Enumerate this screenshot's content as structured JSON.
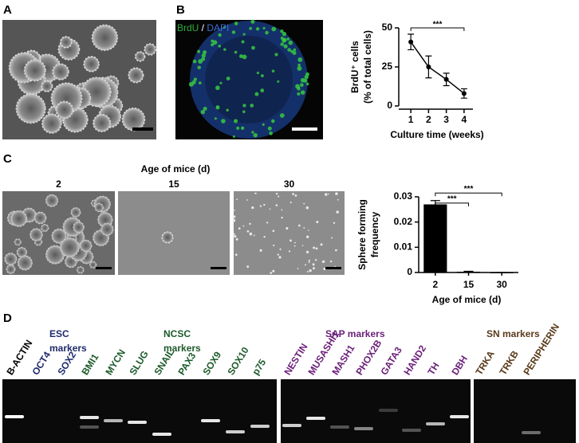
{
  "panels": {
    "a": "A",
    "b": "B",
    "c": "C",
    "d": "D"
  },
  "image_b_label": {
    "brdu": "BrdU",
    "sep": " / ",
    "dapi": "DAPI"
  },
  "images_c": {
    "title": "Age of mice (d)",
    "labels": [
      "2",
      "15",
      "30"
    ]
  },
  "chart_data": [
    {
      "type": "line",
      "x": [
        1,
        2,
        3,
        4
      ],
      "values": [
        41,
        25,
        17,
        8
      ],
      "errors": [
        5,
        7,
        4,
        3
      ],
      "color": "#000000",
      "xlim": [
        0.5,
        4.5
      ],
      "xticks": [
        1,
        2,
        3,
        4
      ],
      "ylim": [
        0,
        50
      ],
      "yticks": [
        0,
        25,
        50
      ],
      "x_label": "Culture time (weeks)",
      "y_label": [
        "BrdU⁺ cells",
        "(% of total cells)"
      ],
      "annotations": [
        {
          "text": "***",
          "from": 1,
          "to": 4,
          "y": 50
        }
      ]
    },
    {
      "type": "bar",
      "categories": [
        "2",
        "15",
        "30"
      ],
      "values": [
        0.027,
        0.0003,
        0
      ],
      "errors": [
        0.0015,
        0.0002,
        0
      ],
      "color": "#000000",
      "ylim": [
        0,
        0.03
      ],
      "yticks": [
        0,
        0.01,
        0.02,
        0.03
      ],
      "x_label": "Age of mice (d)",
      "y_label": [
        "Sphere forming",
        "frequency"
      ],
      "annotations": [
        {
          "text": "***",
          "from": "2",
          "to": "15",
          "y": 0.0275
        },
        {
          "text": "***",
          "from": "2",
          "to": "30",
          "y": 0.0315
        }
      ]
    }
  ],
  "gel": {
    "groups": [
      {
        "title": [
          "ESC",
          "markers"
        ],
        "color": "#1f2a6b"
      },
      {
        "title": [
          "NCSC",
          "markers"
        ],
        "color": "#1c5a2a"
      },
      {
        "title": [
          "SAP markers"
        ],
        "color": "#6b1f7a"
      },
      {
        "title": [
          "SN markers"
        ],
        "color": "#5a3a1a"
      }
    ],
    "lanes": [
      {
        "label": "B-ACTIN",
        "color": "#000000"
      },
      {
        "label": "OCT4",
        "color": "#1f2a6b"
      },
      {
        "label": "SOX2",
        "color": "#1f2a6b"
      },
      {
        "label": "BMI1",
        "color": "#1c5a2a"
      },
      {
        "label": "MYCN",
        "color": "#1c5a2a"
      },
      {
        "label": "SLUG",
        "color": "#1c5a2a"
      },
      {
        "label": "SNAIL",
        "color": "#1c5a2a"
      },
      {
        "label": "PAX3",
        "color": "#1c5a2a"
      },
      {
        "label": "SOX9",
        "color": "#1c5a2a"
      },
      {
        "label": "SOX10",
        "color": "#1c5a2a"
      },
      {
        "label": "p75",
        "color": "#1c5a2a"
      },
      {
        "label": "NESTIN",
        "color": "#6b1f7a"
      },
      {
        "label": "MUSASHI1",
        "color": "#6b1f7a"
      },
      {
        "label": "MASH1",
        "color": "#6b1f7a"
      },
      {
        "label": "PHOX2B",
        "color": "#6b1f7a"
      },
      {
        "label": "GATA3",
        "color": "#6b1f7a"
      },
      {
        "label": "HAND2",
        "color": "#6b1f7a"
      },
      {
        "label": "TH",
        "color": "#6b1f7a"
      },
      {
        "label": "DBH",
        "color": "#6b1f7a"
      },
      {
        "label": "TRKA",
        "color": "#5a3a1a"
      },
      {
        "label": "TRKB",
        "color": "#5a3a1a"
      },
      {
        "label": "PERIPHERIN",
        "color": "#5a3a1a"
      }
    ]
  }
}
